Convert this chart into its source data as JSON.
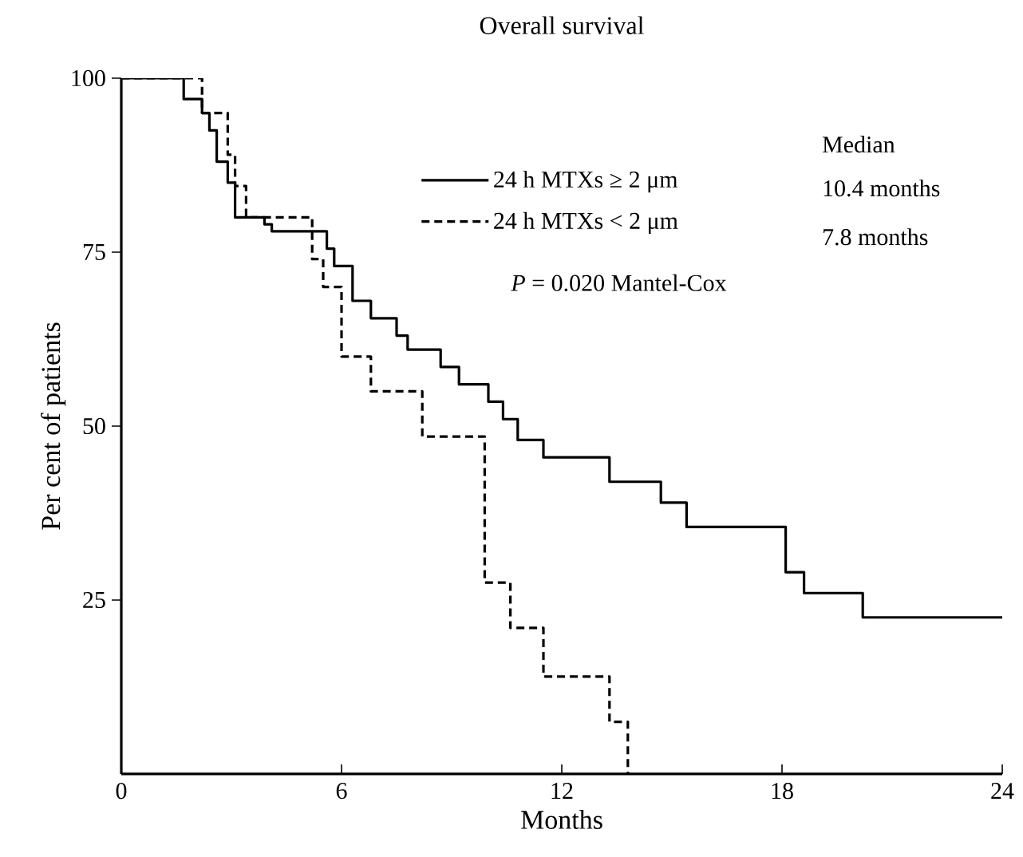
{
  "chart_data": {
    "type": "step",
    "title": "Overall survival",
    "xlabel": "Months",
    "ylabel": "Per cent of patients",
    "xlim": [
      0,
      24
    ],
    "ylim": [
      0,
      100
    ],
    "xticks": [
      0,
      6,
      12,
      18,
      24
    ],
    "yticks": [
      25,
      50,
      75,
      100
    ],
    "legend": "top right",
    "series": [
      {
        "name": "24 h MTXs ≥ 2 μm",
        "color": "#000000",
        "line_style": "solid",
        "x": [
          0,
          1.7,
          2.2,
          2.4,
          2.6,
          2.9,
          3.1,
          3.9,
          4.1,
          5.6,
          5.8,
          6.3,
          6.8,
          7.5,
          7.8,
          8.7,
          9.2,
          10.0,
          10.4,
          10.8,
          11.5,
          13.3,
          14.7,
          15.4,
          18.1,
          18.6,
          20.2,
          24
        ],
        "values": [
          100,
          97,
          95,
          92.5,
          88,
          85,
          80,
          79,
          78,
          75.5,
          73,
          68,
          65.5,
          63,
          61,
          58.5,
          56,
          53.5,
          51,
          48,
          45.5,
          42,
          39,
          35.5,
          29,
          26,
          22.5,
          22.5
        ]
      },
      {
        "name": "24 h MTXs < 2 μm",
        "color": "#000000",
        "line_style": "dashed",
        "x": [
          0,
          2.2,
          2.9,
          3.1,
          3.4,
          5.2,
          5.5,
          6.0,
          6.8,
          8.2,
          9.9,
          10.6,
          11.5,
          13.3,
          13.8
        ],
        "values": [
          100,
          95,
          89,
          84.5,
          80,
          74,
          70,
          60,
          55,
          48.5,
          27.5,
          21,
          14,
          7.5,
          0
        ]
      }
    ],
    "annotations": [
      "Median",
      "10.4 months",
      "7.8 months",
      "*P* = 0.020 Mantel-Cox"
    ]
  }
}
